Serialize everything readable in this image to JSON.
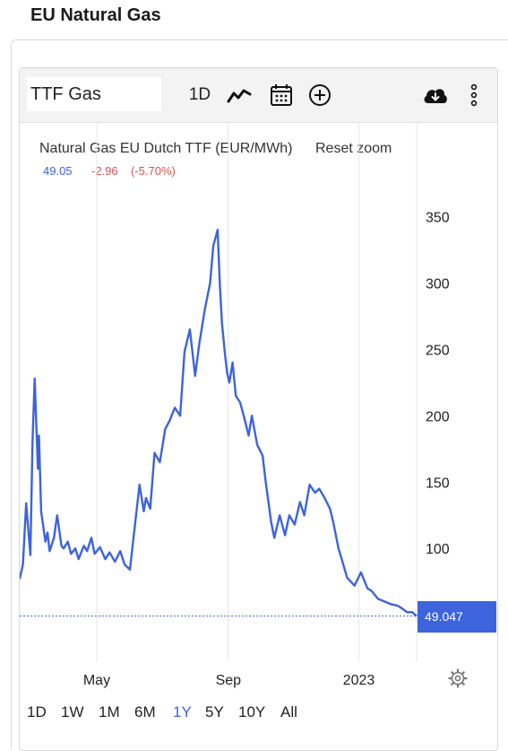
{
  "page": {
    "title": "EU Natural Gas"
  },
  "toolbar": {
    "symbol_value": "TTF Gas",
    "interval_label": "1D",
    "icons": [
      "line-chart-icon",
      "calendar-icon",
      "add-circle-icon",
      "cloud-download-icon",
      "more-vertical-icon",
      "settings-gear-icon"
    ]
  },
  "chart": {
    "reset_zoom_label": "Reset zoom",
    "readout": {
      "last": "49.05",
      "change": "-2.96",
      "change_pct": "(-5.70%)"
    },
    "price_tag": "49.047"
  },
  "ranges": [
    {
      "label": "1D",
      "active": false
    },
    {
      "label": "1W",
      "active": false
    },
    {
      "label": "1M",
      "active": false
    },
    {
      "label": "6M",
      "active": false
    },
    {
      "label": "1Y",
      "active": true
    },
    {
      "label": "5Y",
      "active": false
    },
    {
      "label": "10Y",
      "active": false
    },
    {
      "label": "All",
      "active": false
    }
  ],
  "colors": {
    "line": "#3d63dd",
    "negative": "#d9534f",
    "axis_text": "#222222",
    "gridline": "#e6e6e6"
  },
  "chart_data": {
    "type": "line",
    "title": "Natural Gas EU Dutch TTF (EUR/MWh)",
    "x_ticks": [
      "May",
      "Sep",
      "2023"
    ],
    "y_ticks": [
      100,
      150,
      200,
      250,
      300,
      350
    ],
    "ylim": [
      15,
      380
    ],
    "x_range": [
      "2022-02-18",
      "2023-02-24"
    ],
    "grid": "vertical gridlines at x tick positions",
    "series": [
      {
        "x": [
          "2022-02-18",
          "2022-02-21",
          "2022-02-24",
          "2022-02-28",
          "2022-03-02",
          "2022-03-04",
          "2022-03-07",
          "2022-03-08",
          "2022-03-10",
          "2022-03-14",
          "2022-03-16",
          "2022-03-18",
          "2022-03-22",
          "2022-03-25",
          "2022-03-29",
          "2022-03-31",
          "2022-04-04",
          "2022-04-07",
          "2022-04-11",
          "2022-04-14",
          "2022-04-19",
          "2022-04-22",
          "2022-04-26",
          "2022-04-29",
          "2022-05-04",
          "2022-05-09",
          "2022-05-13",
          "2022-05-18",
          "2022-05-23",
          "2022-05-27",
          "2022-06-01",
          "2022-06-06",
          "2022-06-10",
          "2022-06-14",
          "2022-06-16",
          "2022-06-20",
          "2022-06-24",
          "2022-06-29",
          "2022-07-04",
          "2022-07-08",
          "2022-07-13",
          "2022-07-18",
          "2022-07-22",
          "2022-07-27",
          "2022-08-01",
          "2022-08-05",
          "2022-08-10",
          "2022-08-15",
          "2022-08-18",
          "2022-08-22",
          "2022-08-24",
          "2022-08-26",
          "2022-08-29",
          "2022-08-31",
          "2022-09-02",
          "2022-09-05",
          "2022-09-08",
          "2022-09-12",
          "2022-09-16",
          "2022-09-20",
          "2022-09-23",
          "2022-09-28",
          "2022-10-03",
          "2022-10-06",
          "2022-10-11",
          "2022-10-14",
          "2022-10-19",
          "2022-10-24",
          "2022-10-28",
          "2022-11-02",
          "2022-11-07",
          "2022-11-11",
          "2022-11-16",
          "2022-11-21",
          "2022-11-25",
          "2022-11-30",
          "2022-12-05",
          "2022-12-08",
          "2022-12-13",
          "2022-12-16",
          "2022-12-21",
          "2022-12-28",
          "2023-01-03",
          "2023-01-09",
          "2023-01-13",
          "2023-01-19",
          "2023-01-25",
          "2023-01-31",
          "2023-02-06",
          "2023-02-10",
          "2023-02-15",
          "2023-02-20",
          "2023-02-24"
        ],
        "y": [
          77,
          88,
          134,
          95,
          180,
          228,
          160,
          185,
          128,
          105,
          112,
          98,
          108,
          125,
          102,
          100,
          105,
          96,
          100,
          92,
          102,
          98,
          108,
          96,
          101,
          92,
          97,
          90,
          98,
          88,
          84,
          120,
          148,
          128,
          138,
          130,
          172,
          165,
          190,
          196,
          206,
          200,
          248,
          265,
          230,
          255,
          280,
          300,
          328,
          340,
          300,
          270,
          245,
          232,
          225,
          240,
          215,
          210,
          198,
          185,
          200,
          178,
          170,
          150,
          120,
          108,
          125,
          110,
          125,
          118,
          135,
          125,
          148,
          142,
          145,
          138,
          130,
          120,
          100,
          92,
          78,
          72,
          82,
          70,
          68,
          62,
          60,
          58,
          57,
          55,
          52,
          52,
          49.05
        ]
      }
    ],
    "last_value_label": "49.047"
  }
}
